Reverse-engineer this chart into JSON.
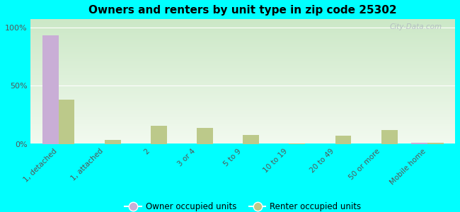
{
  "title": "Owners and renters by unit type in zip code 25302",
  "categories": [
    "1, detached",
    "1, attached",
    "2",
    "3 or 4",
    "5 to 9",
    "10 to 19",
    "20 to 49",
    "50 or more",
    "Mobile home"
  ],
  "owner_values": [
    93,
    0.3,
    0.3,
    0.3,
    0.3,
    0.3,
    0.3,
    0.3,
    1.0
  ],
  "renter_values": [
    38,
    3.5,
    16,
    14,
    8,
    0.8,
    7,
    12,
    1.2
  ],
  "owner_color": "#c9aed6",
  "renter_color": "#bcc98a",
  "bg_color_top_left": "#c8e6c0",
  "bg_color_bottom_right": "#f5fbf0",
  "background_color": "#00ffff",
  "yticks": [
    0,
    50,
    100
  ],
  "ytick_labels": [
    "0%",
    "50%",
    "100%"
  ],
  "bar_width": 0.35,
  "watermark": "City-Data.com"
}
